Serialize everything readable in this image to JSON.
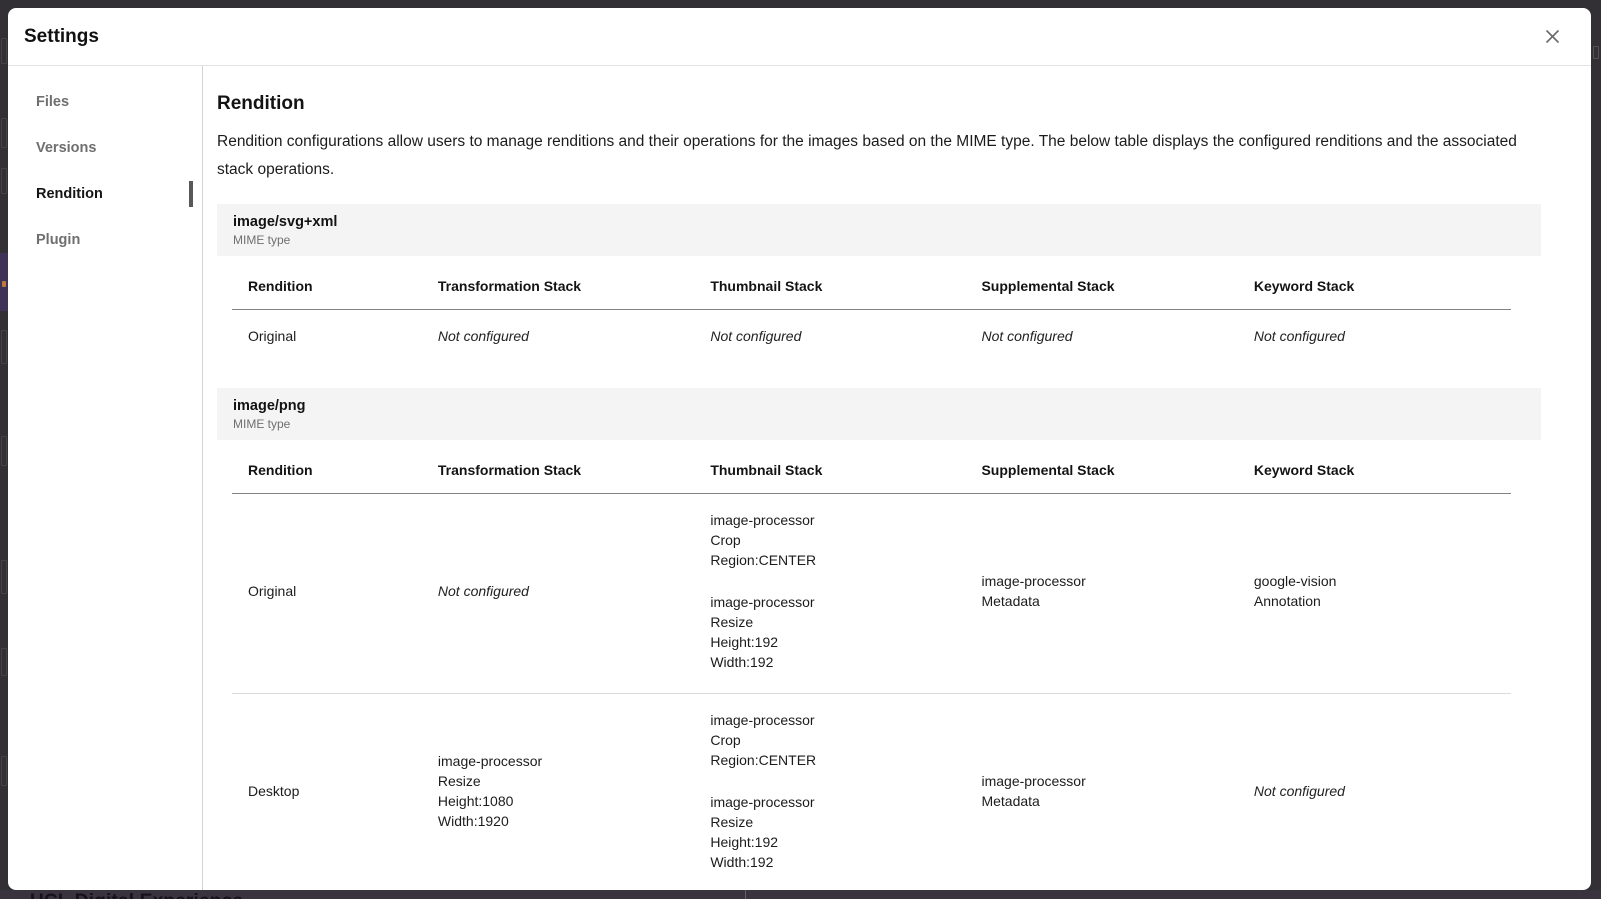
{
  "colors": {
    "overlay_bg": "#323034",
    "accent_purple": "#3e3357",
    "band_bg": "#f4f4f4"
  },
  "underlay": {
    "bottom_text": "UCL Digital Experience"
  },
  "modal": {
    "title": "Settings"
  },
  "sidebar": {
    "items": [
      {
        "label": "Files",
        "active": false
      },
      {
        "label": "Versions",
        "active": false
      },
      {
        "label": "Rendition",
        "active": true
      },
      {
        "label": "Plugin",
        "active": false
      }
    ]
  },
  "content": {
    "heading": "Rendition",
    "description": "Rendition configurations allow users to manage renditions and their operations for the images based on the MIME type. The below table displays the configured renditions and the associated stack operations.",
    "mime_type_label": "MIME type",
    "not_configured": "Not configured",
    "table_headers": [
      "Rendition",
      "Transformation Stack",
      "Thumbnail Stack",
      "Supplemental Stack",
      "Keyword Stack"
    ],
    "sections": [
      {
        "mime": "image/svg+xml",
        "rows": [
          {
            "rendition": "Original",
            "transformation": {
              "configured": false,
              "blocks": []
            },
            "thumbnail": {
              "configured": false,
              "blocks": []
            },
            "supplemental": {
              "configured": false,
              "blocks": []
            },
            "keyword": {
              "configured": false,
              "blocks": []
            }
          }
        ]
      },
      {
        "mime": "image/png",
        "rows": [
          {
            "rendition": "Original",
            "transformation": {
              "configured": false,
              "blocks": []
            },
            "thumbnail": {
              "configured": true,
              "blocks": [
                [
                  "image-processor",
                  "Crop",
                  "Region:CENTER"
                ],
                [
                  "image-processor",
                  "Resize",
                  "Height:192",
                  "Width:192"
                ]
              ]
            },
            "supplemental": {
              "configured": true,
              "blocks": [
                [
                  "image-processor",
                  "Metadata"
                ]
              ]
            },
            "keyword": {
              "configured": true,
              "blocks": [
                [
                  "google-vision",
                  "Annotation"
                ]
              ]
            }
          },
          {
            "rendition": "Desktop",
            "transformation": {
              "configured": true,
              "blocks": [
                [
                  "image-processor",
                  "Resize",
                  "Height:1080",
                  "Width:1920"
                ]
              ]
            },
            "thumbnail": {
              "configured": true,
              "blocks": [
                [
                  "image-processor",
                  "Crop",
                  "Region:CENTER"
                ],
                [
                  "image-processor",
                  "Resize",
                  "Height:192",
                  "Width:192"
                ]
              ]
            },
            "supplemental": {
              "configured": true,
              "blocks": [
                [
                  "image-processor",
                  "Metadata"
                ]
              ]
            },
            "keyword": {
              "configured": false,
              "blocks": []
            }
          }
        ]
      }
    ]
  }
}
